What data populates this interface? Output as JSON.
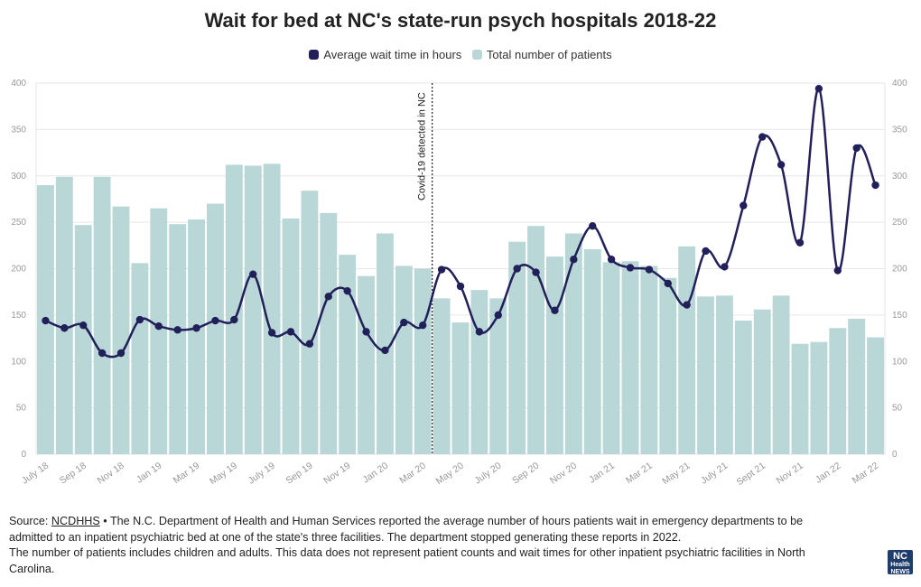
{
  "title": "Wait for bed at NC's state-run psych hospitals 2018-22",
  "legend": {
    "line_label": "Average wait time in hours",
    "bar_label": "Total number of patients"
  },
  "colors": {
    "bar": "#b9d7d6",
    "line": "#22205a",
    "grid": "#e6e6e6",
    "annotation": "#222222"
  },
  "annotation": {
    "label": "Covid-19 detected in NC",
    "at_month": "Mar 20"
  },
  "chart_data": {
    "type": "bar",
    "title": "Wait for bed at NC's state-run psych hospitals 2018-22",
    "categories": [
      "Jul 18",
      "Aug 18",
      "Sep 18",
      "Oct 18",
      "Nov 18",
      "Dec 18",
      "Jan 19",
      "Feb 19",
      "Mar 19",
      "Apr 19",
      "May 19",
      "Jun 19",
      "Jul 19",
      "Aug 19",
      "Sep 19",
      "Oct 19",
      "Nov 19",
      "Dec 19",
      "Jan 20",
      "Feb 20",
      "Mar 20",
      "Apr 20",
      "May 20",
      "Jun 20",
      "Jul 20",
      "Aug 20",
      "Sep 20",
      "Oct 20",
      "Nov 20",
      "Dec 20",
      "Jan 21",
      "Feb 21",
      "Mar 21",
      "Apr 21",
      "May 21",
      "Jun 21",
      "Jul 21",
      "Aug 21",
      "Sept 21",
      "Oct 21",
      "Nov 21",
      "Dec 21",
      "Jan 22",
      "Feb 22",
      "Mar 22"
    ],
    "x_tick_labels": [
      "July 18",
      "Sep 18",
      "Nov 18",
      "Jan 19",
      "Mar 19",
      "May 19",
      "July 19",
      "Sep 19",
      "Nov 19",
      "Jan 20",
      "Mar 20",
      "May 20",
      "July 20",
      "Sep 20",
      "Nov 20",
      "Jan 21",
      "Mar 21",
      "May 21",
      "July 21",
      "Sept 21",
      "Nov 21",
      "Jan 22",
      "Mar 22"
    ],
    "series": [
      {
        "name": "Total number of patients",
        "type": "bar",
        "values": [
          290,
          299,
          247,
          299,
          267,
          206,
          265,
          248,
          253,
          270,
          312,
          311,
          313,
          254,
          284,
          260,
          215,
          192,
          238,
          203,
          200,
          168,
          142,
          177,
          168,
          229,
          246,
          213,
          238,
          221,
          207,
          208,
          203,
          190,
          224,
          170,
          171,
          144,
          156,
          171,
          119,
          121,
          136,
          146,
          126
        ]
      },
      {
        "name": "Average wait time in hours",
        "type": "line",
        "values": [
          144,
          136,
          139,
          109,
          109,
          145,
          138,
          134,
          136,
          144,
          145,
          194,
          131,
          132,
          119,
          170,
          176,
          132,
          112,
          142,
          139,
          199,
          181,
          132,
          150,
          200,
          196,
          155,
          210,
          246,
          210,
          201,
          199,
          184,
          161,
          219,
          202,
          268,
          342,
          312,
          228,
          394,
          198,
          330,
          290
        ]
      }
    ],
    "ylim": [
      0,
      400
    ],
    "y_ticks": [
      0,
      50,
      100,
      150,
      200,
      250,
      300,
      350,
      400
    ],
    "grid": true,
    "legend_position": "top-center"
  },
  "footer": {
    "source_prefix": "Source: ",
    "source_link": "NCDHHS",
    "line1": " • The N.C. Department of Health and Human Services reported the average number of hours patients wait in emergency departments to be admitted to an inpatient psychiatric bed at one of the state's three facilities. The department stopped generating these reports in 2022.",
    "line2": "The number of patients includes children and adults. This data does not represent patient counts and wait times for other inpatient psychiatric facilities in North Carolina."
  },
  "logo": {
    "big": "NC",
    "line1": "Health",
    "line2": "NEWS"
  }
}
